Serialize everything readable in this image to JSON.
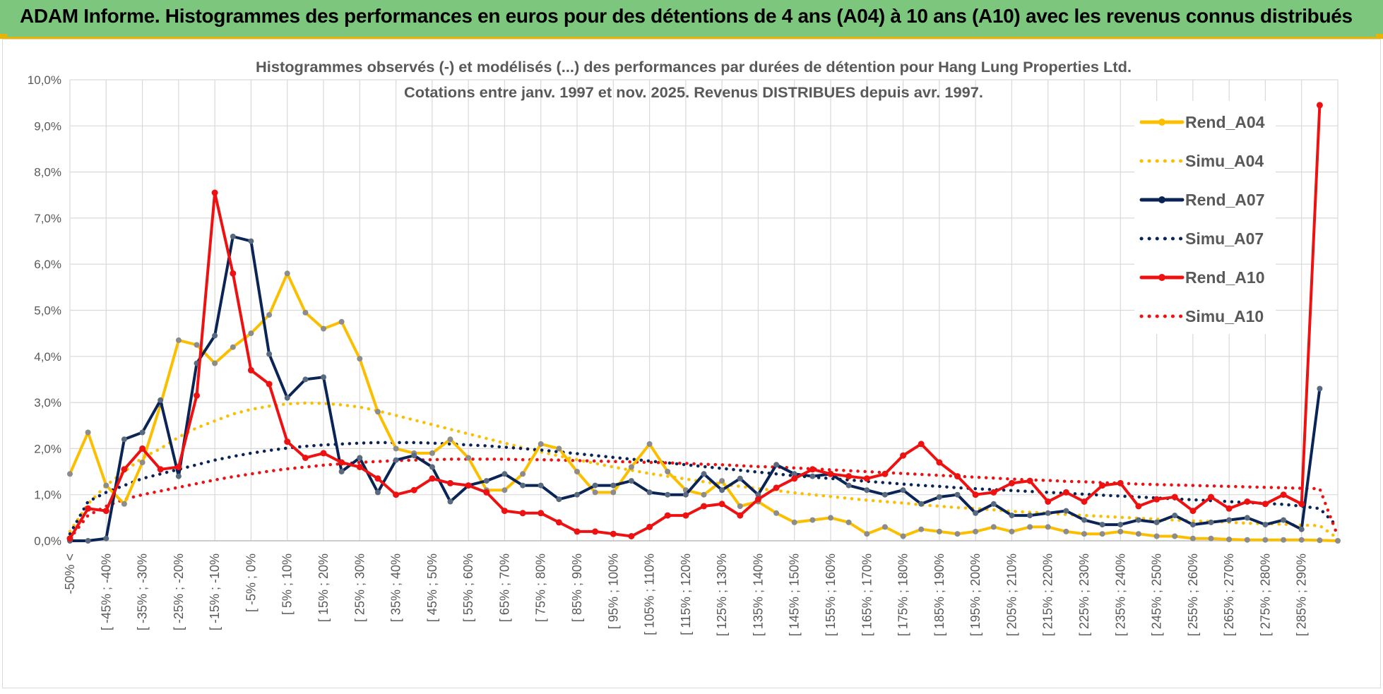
{
  "header": {
    "title": "ADAM Informe. Histogrammes des performances en euros pour des détentions de 4 ans (A04) à 10 ans (A10) avec les revenus connus distribués"
  },
  "colors": {
    "header_bg": "#7dc67d",
    "accent": "#e8b400",
    "a04": "#fbbf00",
    "a07": "#0b2456",
    "a10": "#ee1111",
    "grid": "#d9d9d9",
    "text": "#595959"
  },
  "chart_data": {
    "type": "line",
    "title_line1": "Histogrammes observés (-) et modélisés (...) des performances par durées de détention pour Hang Lung Properties Ltd.",
    "title_line2": "Cotations entre janv. 1997 et nov. 2025. Revenus DISTRIBUES depuis avr. 1997.",
    "ylim": [
      0,
      10
    ],
    "y_ticks": [
      "0,0%",
      "1,0%",
      "2,0%",
      "3,0%",
      "4,0%",
      "5,0%",
      "6,0%",
      "7,0%",
      "8,0%",
      "9,0%",
      "10,0%"
    ],
    "grid": true,
    "legend_position": "top-right",
    "x_tick_labels": [
      "-50% <",
      "[ -45% ; -40%",
      "[ -35% ; -30%",
      "[ -25% ; -20%",
      "[ -15% ; -10%",
      "[ -5% ; 0%",
      "[ 5% ; 10%",
      "[ 15% ; 20%",
      "[ 25% ; 30%",
      "[ 35% ; 40%",
      "[ 45% ; 50%",
      "[ 55% ; 60%",
      "[ 65% ; 70%",
      "[ 75% ; 80%",
      "[ 85% ; 90%",
      "[ 95% ; 100%",
      "[ 105% ; 110%",
      "[ 115% ; 120%",
      "[ 125% ; 130%",
      "[ 135% ; 140%",
      "[ 145% ; 150%",
      "[ 155% ; 160%",
      "[ 165% ; 170%",
      "[ 175% ; 180%",
      "[ 185% ; 190%",
      "[ 195% ; 200%",
      "[ 205% ; 210%",
      "[ 215% ; 220%",
      "[ 225% ; 230%",
      "[ 235% ; 240%",
      "[ 245% ; 250%",
      "[ 255% ; 260%",
      "[ 265% ; 270%",
      "[ 275% ; 280%",
      "[ 285% ; 290%"
    ],
    "series": [
      {
        "name": "Rend_A04",
        "style": "solid",
        "color_key": "a04",
        "values": [
          1.45,
          2.35,
          1.2,
          0.8,
          1.7,
          2.95,
          4.35,
          4.25,
          3.85,
          4.2,
          4.5,
          4.9,
          5.8,
          4.95,
          4.6,
          4.75,
          3.95,
          2.8,
          2.0,
          1.9,
          1.9,
          2.2,
          1.8,
          1.1,
          1.1,
          1.45,
          2.1,
          2.0,
          1.5,
          1.05,
          1.05,
          1.6,
          2.1,
          1.5,
          1.1,
          1.0,
          1.3,
          0.75,
          0.85,
          0.6,
          0.4,
          0.45,
          0.5,
          0.4,
          0.15,
          0.3,
          0.1,
          0.25,
          0.2,
          0.15,
          0.2,
          0.3,
          0.2,
          0.3,
          0.3,
          0.2,
          0.15,
          0.15,
          0.2,
          0.15,
          0.1,
          0.1,
          0.05,
          0.05,
          0.03,
          0.02,
          0.02,
          0.02,
          0.02,
          0.01,
          0.0
        ]
      },
      {
        "name": "Simu_A04",
        "style": "dotted",
        "color_key": "a04",
        "values": [
          0.2,
          0.8,
          1.2,
          1.5,
          1.8,
          2.0,
          2.25,
          2.45,
          2.6,
          2.75,
          2.85,
          2.92,
          2.97,
          2.99,
          2.98,
          2.95,
          2.9,
          2.82,
          2.72,
          2.62,
          2.52,
          2.42,
          2.32,
          2.22,
          2.12,
          2.02,
          1.93,
          1.84,
          1.76,
          1.68,
          1.6,
          1.53,
          1.46,
          1.4,
          1.34,
          1.28,
          1.23,
          1.18,
          1.13,
          1.09,
          1.04,
          1.0,
          0.96,
          0.92,
          0.88,
          0.85,
          0.82,
          0.78,
          0.75,
          0.72,
          0.7,
          0.67,
          0.64,
          0.62,
          0.6,
          0.57,
          0.55,
          0.53,
          0.51,
          0.49,
          0.47,
          0.45,
          0.43,
          0.42,
          0.4,
          0.38,
          0.37,
          0.36,
          0.34,
          0.33,
          0.05
        ]
      },
      {
        "name": "Rend_A07",
        "style": "solid",
        "color_key": "a07",
        "values": [
          0.0,
          0.0,
          0.05,
          2.2,
          2.35,
          3.05,
          1.4,
          3.85,
          4.45,
          6.6,
          6.5,
          4.05,
          3.1,
          3.5,
          3.55,
          1.5,
          1.8,
          1.05,
          1.75,
          1.85,
          1.6,
          0.85,
          1.2,
          1.3,
          1.45,
          1.2,
          1.2,
          0.9,
          1.0,
          1.2,
          1.2,
          1.3,
          1.05,
          1.0,
          1.0,
          1.45,
          1.1,
          1.35,
          1.0,
          1.65,
          1.45,
          1.4,
          1.45,
          1.2,
          1.1,
          1.0,
          1.1,
          0.8,
          0.95,
          1.0,
          0.6,
          0.8,
          0.55,
          0.55,
          0.6,
          0.65,
          0.45,
          0.35,
          0.35,
          0.45,
          0.4,
          0.55,
          0.35,
          0.4,
          0.45,
          0.5,
          0.35,
          0.45,
          0.25,
          3.3
        ]
      },
      {
        "name": "Simu_A07",
        "style": "dotted",
        "color_key": "a07",
        "values": [
          0.15,
          0.85,
          1.05,
          1.2,
          1.35,
          1.45,
          1.55,
          1.65,
          1.75,
          1.83,
          1.9,
          1.96,
          2.01,
          2.05,
          2.08,
          2.1,
          2.12,
          2.13,
          2.13,
          2.13,
          2.12,
          2.1,
          2.08,
          2.06,
          2.03,
          2.0,
          1.97,
          1.93,
          1.89,
          1.85,
          1.81,
          1.77,
          1.73,
          1.69,
          1.65,
          1.61,
          1.57,
          1.53,
          1.49,
          1.45,
          1.41,
          1.38,
          1.35,
          1.32,
          1.29,
          1.26,
          1.23,
          1.2,
          1.18,
          1.15,
          1.13,
          1.11,
          1.09,
          1.07,
          1.05,
          1.03,
          1.01,
          0.99,
          0.97,
          0.95,
          0.93,
          0.91,
          0.89,
          0.87,
          0.85,
          0.83,
          0.81,
          0.79,
          0.75,
          0.7,
          0.3
        ]
      },
      {
        "name": "Rend_A10",
        "style": "solid",
        "color_key": "a10",
        "values": [
          0.05,
          0.7,
          0.65,
          1.55,
          2.0,
          1.55,
          1.6,
          3.15,
          7.55,
          5.8,
          3.7,
          3.4,
          2.15,
          1.8,
          1.9,
          1.7,
          1.6,
          1.35,
          1.0,
          1.1,
          1.35,
          1.25,
          1.2,
          1.05,
          0.65,
          0.6,
          0.6,
          0.4,
          0.2,
          0.2,
          0.15,
          0.1,
          0.3,
          0.55,
          0.55,
          0.75,
          0.8,
          0.55,
          0.9,
          1.15,
          1.35,
          1.55,
          1.45,
          1.4,
          1.35,
          1.45,
          1.85,
          2.1,
          1.7,
          1.4,
          1.0,
          1.05,
          1.25,
          1.3,
          0.85,
          1.05,
          0.85,
          1.2,
          1.25,
          0.75,
          0.9,
          0.95,
          0.65,
          0.95,
          0.7,
          0.85,
          0.8,
          1.0,
          0.8,
          9.45
        ]
      },
      {
        "name": "Simu_A10",
        "style": "dotted",
        "color_key": "a10",
        "values": [
          0.05,
          0.55,
          0.75,
          0.9,
          1.0,
          1.08,
          1.16,
          1.24,
          1.32,
          1.39,
          1.45,
          1.51,
          1.56,
          1.6,
          1.64,
          1.67,
          1.7,
          1.72,
          1.74,
          1.75,
          1.76,
          1.77,
          1.77,
          1.77,
          1.77,
          1.76,
          1.76,
          1.75,
          1.74,
          1.73,
          1.72,
          1.71,
          1.7,
          1.69,
          1.68,
          1.66,
          1.65,
          1.63,
          1.61,
          1.6,
          1.58,
          1.56,
          1.54,
          1.52,
          1.5,
          1.48,
          1.46,
          1.44,
          1.42,
          1.4,
          1.38,
          1.36,
          1.34,
          1.32,
          1.31,
          1.29,
          1.28,
          1.26,
          1.25,
          1.23,
          1.22,
          1.21,
          1.2,
          1.19,
          1.18,
          1.17,
          1.16,
          1.15,
          1.14,
          1.13,
          0.1
        ]
      }
    ]
  }
}
